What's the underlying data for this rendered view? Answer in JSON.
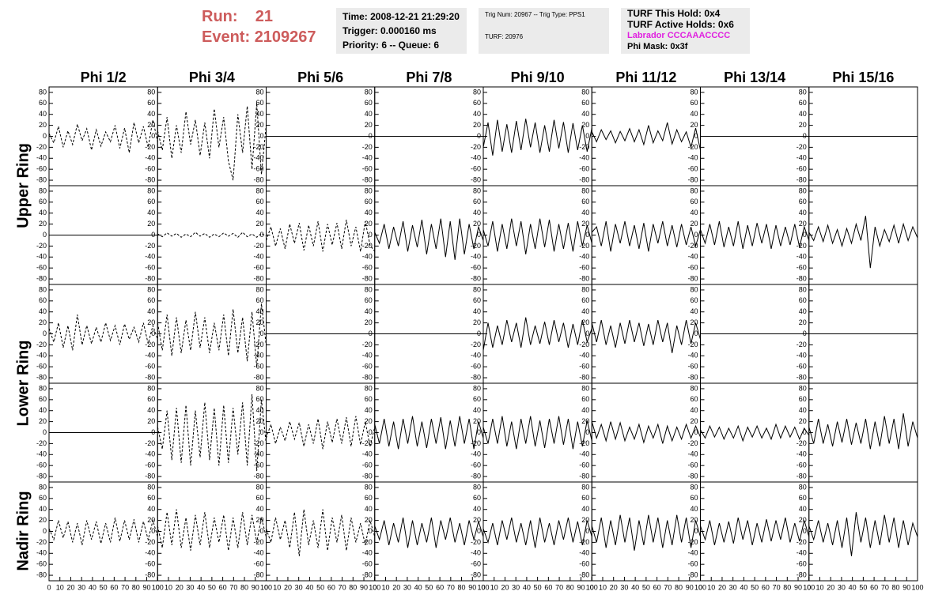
{
  "header": {
    "run_label": "Run:",
    "run": "21",
    "event_label": "Event:",
    "event": "2109267"
  },
  "info": [
    [
      "Time: 2008-12-21 21:29:20",
      "Trigger: 0.000160 ms",
      "Priority: 6 -- Queue: 6"
    ],
    [
      "Trig Num: 20967 -- Trig Type: PPS1",
      "TURF: 20976"
    ],
    [
      "TURF This Hold: 0x4",
      "TURF Active Holds: 0x6",
      "Labrador CCCAAACCCC",
      "Phi Mask: 0x3f"
    ]
  ],
  "chart_data": {
    "type": "waveform-grid",
    "columns": [
      "Phi 1/2",
      "Phi 3/4",
      "Phi 5/6",
      "Phi 7/8",
      "Phi 9/10",
      "Phi 11/12",
      "Phi 13/14",
      "Phi 15/16"
    ],
    "row_labels": [
      "Upper Ring",
      "Lower Ring",
      "Nadir Ring"
    ],
    "xlim": [
      0,
      100
    ],
    "xticks": [
      0,
      10,
      20,
      30,
      40,
      50,
      60,
      70,
      80,
      90,
      100
    ],
    "ylim": [
      -90,
      90
    ],
    "yticks": [
      -80,
      -60,
      -40,
      -20,
      0,
      20,
      40,
      60,
      80
    ],
    "line_color": "#000000",
    "panels": [
      [
        {
          "dashed": true,
          "values": [
            5,
            -12,
            18,
            -20,
            10,
            -15,
            22,
            -8,
            14,
            -25,
            12,
            -18,
            8,
            -10,
            20,
            -22,
            15,
            -30,
            25,
            -12,
            18,
            -20,
            30,
            -10
          ]
        },
        {
          "dashed": true,
          "values": [
            10,
            -25,
            35,
            -40,
            20,
            -30,
            45,
            -15,
            30,
            -35,
            25,
            -40,
            50,
            -20,
            35,
            -45,
            -80,
            40,
            -30,
            55,
            -60,
            60,
            -70,
            20
          ]
        },
        {
          "dashed": false,
          "values": [
            0,
            0
          ]
        },
        {
          "dashed": false,
          "values": [
            0,
            0
          ]
        },
        {
          "dashed": false,
          "values": [
            -20,
            25,
            -35,
            30,
            -28,
            22,
            -30,
            28,
            -25,
            32,
            -20,
            25,
            -30,
            20,
            -28,
            30,
            -22,
            26,
            -30,
            24,
            -25,
            20,
            -28,
            15
          ]
        },
        {
          "dashed": false,
          "values": [
            8,
            -10,
            12,
            -6,
            10,
            -12,
            9,
            -8,
            14,
            -10,
            12,
            -15,
            20,
            -12,
            10,
            -8,
            25,
            -14,
            12,
            -10,
            8,
            -20,
            15,
            -25
          ]
        },
        {
          "dashed": false,
          "values": [
            0,
            0
          ]
        },
        {
          "dashed": false,
          "values": [
            0,
            0
          ]
        }
      ],
      [
        {
          "dashed": false,
          "values": [
            0,
            0
          ]
        },
        {
          "dashed": true,
          "values": [
            2,
            -3,
            4,
            -2,
            3,
            -4,
            2,
            -3,
            5,
            -2,
            3,
            -4,
            2,
            -3,
            4,
            -2,
            3,
            -4,
            5,
            -3,
            2,
            -4,
            3,
            -2
          ]
        },
        {
          "dashed": true,
          "values": [
            -10,
            15,
            -20,
            12,
            -25,
            20,
            -15,
            22,
            -28,
            18,
            -20,
            25,
            -30,
            20,
            -18,
            22,
            -25,
            28,
            -20,
            15,
            -30,
            25,
            -18,
            -30
          ]
        },
        {
          "dashed": false,
          "values": [
            5,
            -15,
            20,
            -25,
            15,
            -20,
            25,
            -30,
            18,
            -22,
            28,
            -35,
            20,
            -25,
            30,
            -40,
            25,
            -45,
            30,
            -35,
            20,
            -25,
            15,
            -10
          ]
        },
        {
          "dashed": false,
          "values": [
            10,
            -20,
            25,
            -30,
            20,
            -25,
            30,
            -20,
            25,
            -35,
            20,
            -25,
            30,
            -22,
            28,
            -30,
            20,
            -25,
            22,
            -30,
            25,
            -20,
            18,
            -15
          ]
        },
        {
          "dashed": false,
          "values": [
            5,
            15,
            -20,
            25,
            -30,
            20,
            -15,
            25,
            -20,
            18,
            -25,
            22,
            -30,
            20,
            -15,
            25,
            -20,
            18,
            -22,
            20,
            -18,
            15,
            -20,
            10
          ]
        },
        {
          "dashed": false,
          "values": [
            10,
            -15,
            20,
            -18,
            25,
            -22,
            15,
            -20,
            25,
            -25,
            18,
            -20,
            22,
            -15,
            20,
            -25,
            18,
            -20,
            15,
            -18,
            20,
            -22,
            15,
            -10
          ]
        },
        {
          "dashed": false,
          "values": [
            5,
            -10,
            15,
            -12,
            18,
            -15,
            10,
            -20,
            12,
            -15,
            20,
            -10,
            35,
            -60,
            15,
            -20,
            10,
            -12,
            18,
            -15,
            20,
            -10,
            15,
            -5
          ]
        }
      ],
      [
        {
          "dashed": true,
          "values": [
            10,
            -15,
            20,
            -25,
            15,
            -30,
            35,
            -20,
            15,
            -18,
            12,
            -15,
            20,
            -12,
            15,
            -20,
            18,
            -10,
            12,
            -15,
            20,
            -18,
            15,
            -10
          ]
        },
        {
          "dashed": true,
          "values": [
            20,
            -30,
            35,
            -40,
            30,
            -35,
            25,
            -30,
            40,
            -25,
            30,
            -35,
            20,
            -30,
            35,
            -40,
            45,
            -35,
            30,
            -50,
            40,
            -60,
            55,
            -20
          ]
        },
        {
          "dashed": false,
          "values": [
            0,
            0
          ]
        },
        {
          "dashed": false,
          "values": [
            0,
            0
          ]
        },
        {
          "dashed": false,
          "values": [
            -30,
            20,
            -25,
            15,
            -20,
            25,
            -15,
            20,
            -25,
            30,
            -20,
            15,
            -18,
            22,
            -20,
            25,
            -15,
            20,
            -25,
            18,
            -20,
            25,
            -15,
            10
          ]
        },
        {
          "dashed": false,
          "values": [
            20,
            -15,
            25,
            -20,
            15,
            -25,
            20,
            -18,
            25,
            -15,
            20,
            -22,
            18,
            -20,
            25,
            -15,
            20,
            -35,
            15,
            -20,
            25,
            -18,
            20,
            -10
          ]
        },
        {
          "dashed": false,
          "values": [
            0,
            0
          ]
        },
        {
          "dashed": false,
          "values": [
            0,
            0
          ]
        }
      ],
      [
        {
          "dashed": false,
          "values": [
            0,
            0
          ]
        },
        {
          "dashed": true,
          "values": [
            10,
            -30,
            40,
            -50,
            45,
            -55,
            50,
            -60,
            40,
            -45,
            55,
            -50,
            45,
            -60,
            50,
            -55,
            45,
            -40,
            55,
            -60,
            70,
            -70,
            60,
            -20
          ]
        },
        {
          "dashed": true,
          "values": [
            -10,
            15,
            -20,
            10,
            -15,
            20,
            -12,
            18,
            -25,
            15,
            -20,
            25,
            -30,
            20,
            -18,
            25,
            -20,
            28,
            -25,
            30,
            -22,
            20,
            -25,
            10
          ]
        },
        {
          "dashed": false,
          "values": [
            15,
            -20,
            25,
            -25,
            20,
            -30,
            25,
            -20,
            30,
            -25,
            20,
            -28,
            25,
            -20,
            28,
            -30,
            22,
            -25,
            30,
            -20,
            25,
            -30,
            20,
            -10
          ]
        },
        {
          "dashed": false,
          "values": [
            10,
            -20,
            25,
            -20,
            30,
            -25,
            20,
            -30,
            25,
            -20,
            30,
            -25,
            22,
            -28,
            25,
            -20,
            30,
            -22,
            25,
            -30,
            20,
            -25,
            22,
            -15
          ]
        },
        {
          "dashed": false,
          "values": [
            20,
            -10,
            15,
            -15,
            20,
            -12,
            18,
            -15,
            10,
            -12,
            15,
            -18,
            12,
            -10,
            15,
            -20,
            12,
            -15,
            10,
            -12,
            15,
            -10,
            12,
            -8
          ]
        },
        {
          "dashed": false,
          "values": [
            5,
            -10,
            12,
            -8,
            10,
            -12,
            8,
            -10,
            12,
            -15,
            10,
            -8,
            12,
            -10,
            8,
            -12,
            15,
            -10,
            12,
            -8,
            10,
            -12,
            8,
            -5
          ]
        },
        {
          "dashed": false,
          "values": [
            10,
            -20,
            25,
            -20,
            15,
            -25,
            20,
            -18,
            25,
            -22,
            18,
            -20,
            25,
            -30,
            20,
            -25,
            30,
            -20,
            25,
            -30,
            35,
            -25,
            20,
            -10
          ]
        }
      ],
      [
        {
          "dashed": true,
          "values": [
            5,
            -15,
            20,
            -12,
            18,
            -20,
            15,
            -25,
            20,
            -15,
            18,
            -22,
            15,
            -20,
            25,
            -18,
            20,
            -15,
            22,
            -20,
            18,
            -15,
            20,
            -10
          ]
        },
        {
          "dashed": true,
          "values": [
            10,
            -30,
            35,
            -25,
            40,
            -30,
            25,
            -35,
            30,
            -25,
            35,
            -30,
            25,
            -20,
            30,
            -35,
            25,
            -30,
            35,
            -25,
            30,
            -20,
            25,
            -10
          ]
        },
        {
          "dashed": true,
          "values": [
            5,
            -20,
            25,
            -15,
            20,
            -30,
            35,
            -45,
            40,
            -25,
            20,
            -30,
            40,
            -35,
            25,
            -20,
            30,
            -35,
            25,
            -20,
            15,
            -25,
            20,
            -10
          ]
        },
        {
          "dashed": false,
          "values": [
            10,
            -15,
            20,
            -25,
            15,
            -20,
            25,
            -30,
            20,
            -25,
            15,
            -20,
            25,
            -30,
            20,
            -15,
            25,
            -20,
            15,
            -25,
            20,
            -15,
            18,
            -10
          ]
        },
        {
          "dashed": false,
          "values": [
            5,
            -20,
            15,
            -25,
            20,
            -15,
            25,
            -20,
            15,
            -25,
            20,
            -30,
            25,
            -20,
            15,
            -25,
            20,
            -15,
            25,
            -20,
            18,
            -25,
            20,
            -10
          ]
        },
        {
          "dashed": false,
          "values": [
            10,
            -20,
            25,
            -30,
            20,
            -25,
            30,
            -20,
            25,
            -35,
            20,
            -25,
            30,
            -20,
            25,
            -30,
            20,
            -25,
            30,
            -20,
            25,
            -30,
            20,
            -10
          ]
        },
        {
          "dashed": false,
          "values": [
            10,
            -15,
            20,
            -25,
            15,
            -20,
            18,
            -22,
            25,
            -15,
            20,
            -25,
            15,
            -20,
            22,
            -18,
            20,
            -15,
            25,
            -20,
            15,
            -18,
            20,
            -10
          ]
        },
        {
          "dashed": false,
          "values": [
            10,
            -15,
            20,
            -20,
            15,
            -25,
            20,
            -30,
            25,
            -45,
            35,
            -20,
            25,
            -30,
            20,
            -25,
            30,
            -20,
            25,
            -30,
            20,
            -25,
            15,
            -10
          ]
        }
      ]
    ]
  }
}
